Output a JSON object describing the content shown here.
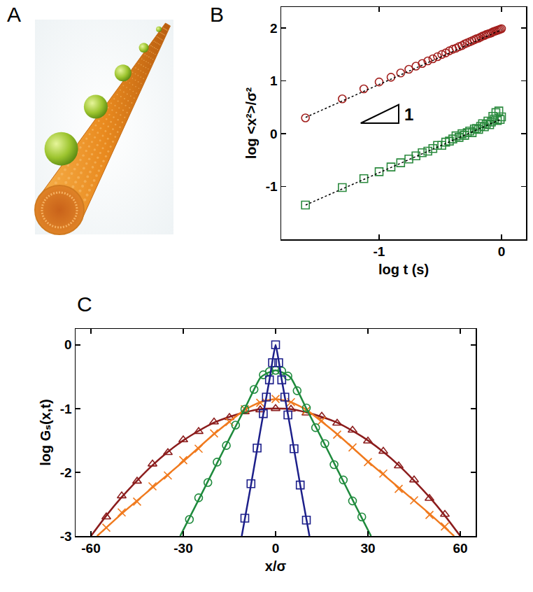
{
  "chart_data": [
    {
      "panel": "A",
      "type": "illustration"
    },
    {
      "panel": "B",
      "type": "scatter",
      "xlabel": "log t (s)",
      "ylabel": "log <x²>/σ²",
      "xlim": [
        -1.8,
        0.2
      ],
      "ylim": [
        -2,
        2.4
      ],
      "xticks": [
        -1,
        0
      ],
      "yticks": [
        -1,
        0,
        1,
        2
      ],
      "series": [
        {
          "type": "scatter",
          "color": "#a3201e",
          "marker": "circle",
          "x": [
            -1.602,
            -1.301,
            -1.125,
            -1.0,
            -0.903,
            -0.824,
            -0.757,
            -0.699,
            -0.648,
            -0.602,
            -0.561,
            -0.523,
            -0.488,
            -0.456,
            -0.426,
            -0.398,
            -0.372,
            -0.347,
            -0.323,
            -0.301,
            -0.28,
            -0.26,
            -0.24,
            -0.222,
            -0.204,
            -0.187,
            -0.171,
            -0.155,
            -0.14,
            -0.125,
            -0.111,
            -0.097,
            -0.083,
            -0.071,
            -0.058,
            -0.046,
            -0.034,
            -0.022,
            -0.011,
            0.0
          ],
          "values": [
            0.3,
            0.66,
            0.85,
            0.98,
            1.07,
            1.15,
            1.22,
            1.28,
            1.33,
            1.38,
            1.42,
            1.46,
            1.5,
            1.53,
            1.57,
            1.6,
            1.62,
            1.65,
            1.67,
            1.7,
            1.72,
            1.74,
            1.76,
            1.78,
            1.8,
            1.81,
            1.83,
            1.85,
            1.86,
            1.88,
            1.89,
            1.9,
            1.91,
            1.93,
            1.94,
            1.95,
            1.96,
            1.97,
            1.98,
            1.99
          ]
        },
        {
          "type": "scatter",
          "color": "#2b8a3e",
          "marker": "square",
          "x": [
            -1.602,
            -1.301,
            -1.125,
            -1.0,
            -0.903,
            -0.824,
            -0.757,
            -0.699,
            -0.648,
            -0.602,
            -0.561,
            -0.523,
            -0.488,
            -0.456,
            -0.426,
            -0.398,
            -0.372,
            -0.347,
            -0.323,
            -0.301,
            -0.28,
            -0.26,
            -0.24,
            -0.222,
            -0.204,
            -0.187,
            -0.171,
            -0.155,
            -0.14,
            -0.125,
            -0.111,
            -0.097,
            -0.083,
            -0.071,
            -0.058,
            -0.046,
            -0.034,
            -0.022,
            -0.011,
            0.0
          ],
          "values": [
            -1.35,
            -1.02,
            -0.85,
            -0.72,
            -0.63,
            -0.55,
            -0.48,
            -0.42,
            -0.36,
            -0.33,
            -0.28,
            -0.22,
            -0.22,
            -0.16,
            -0.14,
            -0.1,
            -0.04,
            -0.07,
            0.0,
            -0.03,
            0.02,
            0.05,
            0.02,
            0.09,
            0.1,
            0.08,
            0.14,
            0.19,
            0.13,
            0.18,
            0.24,
            0.17,
            0.22,
            0.33,
            0.28,
            0.4,
            0.25,
            0.43,
            0.27,
            0.32
          ]
        },
        {
          "type": "line",
          "color": "#000000",
          "line_style": "dotted",
          "x": [
            -1.6,
            0
          ],
          "values": [
            0.31,
            1.97
          ]
        },
        {
          "type": "line",
          "color": "#000000",
          "line_style": "dotted",
          "x": [
            -1.6,
            0
          ],
          "values": [
            -1.35,
            0.28
          ]
        }
      ],
      "annotations": [
        {
          "text": "1",
          "x": -0.76,
          "y": 0.37
        }
      ],
      "slope_triangle": {
        "x": [
          -1.15,
          -0.84
        ],
        "y": [
          0.2,
          0.55
        ]
      }
    },
    {
      "panel": "C",
      "type": "scatter",
      "xlabel": "x/σ",
      "ylabel": "log Gₛ(x,t)",
      "xlim": [
        -65,
        65
      ],
      "ylim": [
        -3,
        0.25
      ],
      "xticks": [
        -60,
        -30,
        0,
        30,
        60
      ],
      "yticks": [
        -3,
        -2,
        -1,
        0
      ],
      "series": [
        {
          "type": "line",
          "color": "#8b1c1c",
          "line_style": "solid",
          "x": [
            -60,
            -55,
            -50,
            -45,
            -40,
            -35,
            -30,
            -25,
            -20,
            -15,
            -10,
            -5,
            0,
            5,
            10,
            15,
            20,
            25,
            30,
            35,
            40,
            45,
            50,
            55,
            60
          ],
          "values": [
            -3.0,
            -2.68,
            -2.39,
            -2.13,
            -1.89,
            -1.68,
            -1.5,
            -1.35,
            -1.22,
            -1.13,
            -1.06,
            -1.01,
            -1.0,
            -1.01,
            -1.06,
            -1.13,
            -1.22,
            -1.35,
            -1.5,
            -1.68,
            -1.89,
            -2.13,
            -2.39,
            -2.68,
            -3.0
          ]
        },
        {
          "type": "scatter",
          "color": "#8b1c1c",
          "marker": "triangle",
          "x": [
            -55,
            -50,
            -45,
            -40,
            -35,
            -30,
            -25,
            -20,
            -15,
            -10,
            -5,
            0,
            5,
            10,
            15,
            20,
            25,
            30,
            35,
            40,
            45,
            50,
            55
          ],
          "values": [
            -2.7,
            -2.37,
            -2.14,
            -1.87,
            -1.69,
            -1.49,
            -1.36,
            -1.21,
            -1.14,
            -1.05,
            -1.02,
            -1.0,
            -1.01,
            -1.07,
            -1.12,
            -1.23,
            -1.34,
            -1.51,
            -1.67,
            -1.9,
            -2.12,
            -2.41,
            -2.66
          ]
        },
        {
          "type": "line",
          "color": "#f07a1e",
          "line_style": "solid",
          "x": [
            -58,
            -50,
            -40,
            -30,
            -20,
            -10,
            -5,
            0,
            5,
            10,
            20,
            30,
            40,
            50,
            58
          ],
          "values": [
            -3.0,
            -2.65,
            -2.24,
            -1.83,
            -1.4,
            -1.02,
            -0.9,
            -0.85,
            -0.9,
            -1.02,
            -1.4,
            -1.83,
            -2.24,
            -2.65,
            -3.0
          ]
        },
        {
          "type": "scatter",
          "color": "#f07a1e",
          "marker": "x",
          "x": [
            -55,
            -50,
            -45,
            -40,
            -35,
            -30,
            -25,
            -20,
            -15,
            -10,
            -5,
            0,
            5,
            10,
            15,
            20,
            25,
            30,
            35,
            40,
            45,
            50,
            55
          ],
          "values": [
            -2.87,
            -2.63,
            -2.46,
            -2.22,
            -2.05,
            -1.81,
            -1.63,
            -1.39,
            -1.21,
            -1.01,
            -0.91,
            -0.85,
            -0.9,
            -1.03,
            -1.19,
            -1.41,
            -1.61,
            -1.84,
            -2.02,
            -2.26,
            -2.44,
            -2.67,
            -2.85
          ]
        },
        {
          "type": "line",
          "color": "#1e8a3c",
          "line_style": "solid",
          "x": [
            -31,
            -25,
            -20,
            -15,
            -10,
            -5,
            -3,
            0,
            3,
            5,
            10,
            15,
            20,
            25,
            31
          ],
          "values": [
            -3.0,
            -2.43,
            -1.95,
            -1.47,
            -1.0,
            -0.52,
            -0.45,
            -0.4,
            -0.45,
            -0.52,
            -1.0,
            -1.47,
            -1.95,
            -2.43,
            -3.0
          ]
        },
        {
          "type": "scatter",
          "color": "#1e8a3c",
          "marker": "circle",
          "x": [
            -28,
            -25,
            -22,
            -19,
            -16,
            -13,
            -10,
            -7,
            -4,
            -2,
            0,
            2,
            4,
            7,
            10,
            13,
            16,
            19,
            22,
            25,
            28
          ],
          "values": [
            -2.74,
            -2.4,
            -2.16,
            -1.84,
            -1.58,
            -1.26,
            -1.01,
            -0.7,
            -0.47,
            -0.42,
            -0.4,
            -0.41,
            -0.49,
            -0.72,
            -0.99,
            -1.3,
            -1.55,
            -1.88,
            -2.12,
            -2.45,
            -2.7
          ]
        },
        {
          "type": "line",
          "color": "#1c1f8a",
          "line_style": "solid",
          "x": [
            -11,
            -8,
            -5,
            -3,
            -2,
            -1,
            0,
            1,
            2,
            3,
            5,
            8,
            11
          ],
          "values": [
            -3.0,
            -2.2,
            -1.36,
            -0.82,
            -0.55,
            -0.25,
            0.0,
            -0.25,
            -0.55,
            -0.82,
            -1.36,
            -2.2,
            -3.0
          ]
        },
        {
          "type": "scatter",
          "color": "#1c1f8a",
          "marker": "square",
          "x": [
            -10,
            -8,
            -6,
            -4,
            -3,
            -2,
            -1,
            0,
            1,
            2,
            3,
            4,
            6,
            8,
            10
          ],
          "values": [
            -2.72,
            -2.18,
            -1.62,
            -1.08,
            -0.82,
            -0.55,
            -0.28,
            0.0,
            -0.28,
            -0.55,
            -0.82,
            -1.1,
            -1.63,
            -2.2,
            -2.75
          ]
        }
      ]
    }
  ]
}
